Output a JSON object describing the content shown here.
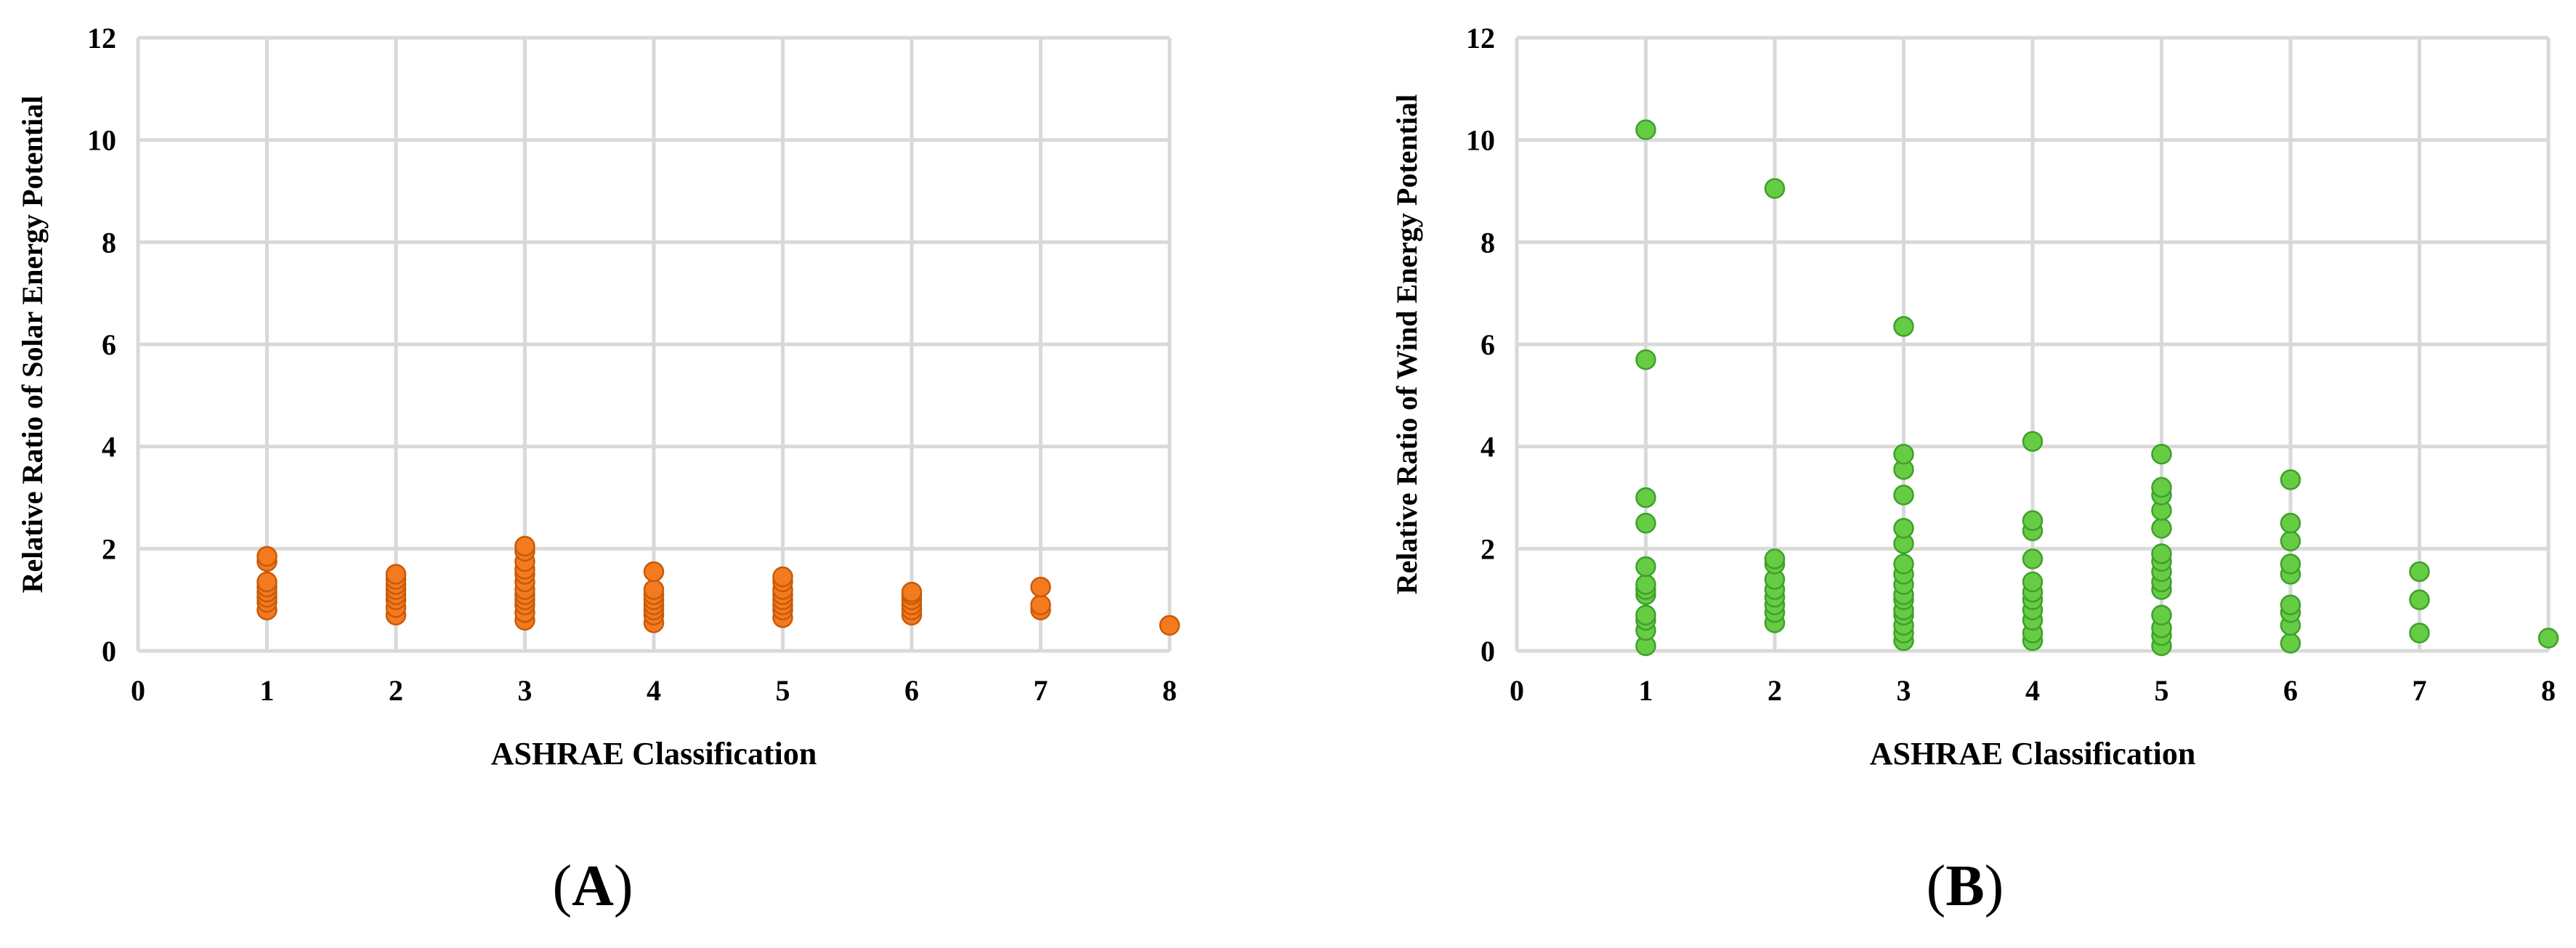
{
  "panels": [
    {
      "paren_open": "(",
      "letter": "A",
      "paren_close": ")"
    },
    {
      "paren_open": "(",
      "letter": "B",
      "paren_close": ")"
    }
  ],
  "colors": {
    "solar_fill": "#F47A20",
    "solar_stroke": "#C85A08",
    "wind_fill": "#66CC44",
    "wind_stroke": "#3FA02A",
    "grid": "#D9D9D9"
  },
  "chart_data": [
    {
      "type": "scatter",
      "panel": "A",
      "xlabel": "ASHRAE Classification",
      "ylabel": "Relative Ratio of Solar Energy Potential",
      "xlim": [
        0,
        8
      ],
      "ylim": [
        0,
        12
      ],
      "xticks": [
        0,
        1,
        2,
        3,
        4,
        5,
        6,
        7,
        8
      ],
      "yticks": [
        0,
        2,
        4,
        6,
        8,
        10,
        12
      ],
      "grid": true,
      "series": [
        {
          "points": [
            [
              1,
              0.8
            ],
            [
              1,
              0.95
            ],
            [
              1,
              1.05
            ],
            [
              1,
              1.15
            ],
            [
              1,
              1.25
            ],
            [
              1,
              1.35
            ],
            [
              1,
              1.75
            ],
            [
              1,
              1.85
            ],
            [
              2,
              0.7
            ],
            [
              2,
              0.85
            ],
            [
              2,
              1.0
            ],
            [
              2,
              1.1
            ],
            [
              2,
              1.2
            ],
            [
              2,
              1.3
            ],
            [
              2,
              1.4
            ],
            [
              2,
              1.5
            ],
            [
              3,
              0.6
            ],
            [
              3,
              0.75
            ],
            [
              3,
              0.9
            ],
            [
              3,
              1.0
            ],
            [
              3,
              1.1
            ],
            [
              3,
              1.2
            ],
            [
              3,
              1.35
            ],
            [
              3,
              1.5
            ],
            [
              3,
              1.6
            ],
            [
              3,
              1.75
            ],
            [
              3,
              1.95
            ],
            [
              3,
              2.05
            ],
            [
              4,
              0.55
            ],
            [
              4,
              0.7
            ],
            [
              4,
              0.8
            ],
            [
              4,
              0.9
            ],
            [
              4,
              1.0
            ],
            [
              4,
              1.1
            ],
            [
              4,
              1.2
            ],
            [
              4,
              1.55
            ],
            [
              5,
              0.65
            ],
            [
              5,
              0.8
            ],
            [
              5,
              0.9
            ],
            [
              5,
              1.0
            ],
            [
              5,
              1.1
            ],
            [
              5,
              1.2
            ],
            [
              5,
              1.35
            ],
            [
              5,
              1.45
            ],
            [
              6,
              0.7
            ],
            [
              6,
              0.8
            ],
            [
              6,
              0.9
            ],
            [
              6,
              1.0
            ],
            [
              6,
              1.1
            ],
            [
              6,
              1.15
            ],
            [
              7,
              0.8
            ],
            [
              7,
              0.9
            ],
            [
              7,
              1.25
            ],
            [
              8,
              0.5
            ]
          ]
        }
      ]
    },
    {
      "type": "scatter",
      "panel": "B",
      "xlabel": "ASHRAE Classification",
      "ylabel": "Relative Ratio of Wind Energy Potential",
      "xlim": [
        0,
        8
      ],
      "ylim": [
        0,
        12
      ],
      "xticks": [
        0,
        1,
        2,
        3,
        4,
        5,
        6,
        7,
        8
      ],
      "yticks": [
        0,
        2,
        4,
        6,
        8,
        10,
        12
      ],
      "grid": true,
      "series": [
        {
          "points": [
            [
              1,
              0.1
            ],
            [
              1,
              0.4
            ],
            [
              1,
              0.6
            ],
            [
              1,
              0.7
            ],
            [
              1,
              1.1
            ],
            [
              1,
              1.2
            ],
            [
              1,
              1.3
            ],
            [
              1,
              1.65
            ],
            [
              1,
              2.5
            ],
            [
              1,
              3.0
            ],
            [
              1,
              5.7
            ],
            [
              1,
              10.2
            ],
            [
              2,
              0.55
            ],
            [
              2,
              0.75
            ],
            [
              2,
              0.9
            ],
            [
              2,
              1.05
            ],
            [
              2,
              1.2
            ],
            [
              2,
              1.4
            ],
            [
              2,
              1.7
            ],
            [
              2,
              1.8
            ],
            [
              2,
              9.05
            ],
            [
              3,
              0.2
            ],
            [
              3,
              0.35
            ],
            [
              3,
              0.5
            ],
            [
              3,
              0.7
            ],
            [
              3,
              0.8
            ],
            [
              3,
              1.0
            ],
            [
              3,
              1.1
            ],
            [
              3,
              1.3
            ],
            [
              3,
              1.5
            ],
            [
              3,
              1.7
            ],
            [
              3,
              2.1
            ],
            [
              3,
              2.4
            ],
            [
              3,
              3.05
            ],
            [
              3,
              3.55
            ],
            [
              3,
              3.85
            ],
            [
              3,
              6.35
            ],
            [
              4,
              0.2
            ],
            [
              4,
              0.35
            ],
            [
              4,
              0.6
            ],
            [
              4,
              0.8
            ],
            [
              4,
              1.0
            ],
            [
              4,
              1.15
            ],
            [
              4,
              1.35
            ],
            [
              4,
              1.8
            ],
            [
              4,
              2.35
            ],
            [
              4,
              2.55
            ],
            [
              4,
              4.1
            ],
            [
              5,
              0.1
            ],
            [
              5,
              0.3
            ],
            [
              5,
              0.45
            ],
            [
              5,
              0.7
            ],
            [
              5,
              1.2
            ],
            [
              5,
              1.35
            ],
            [
              5,
              1.55
            ],
            [
              5,
              1.75
            ],
            [
              5,
              1.9
            ],
            [
              5,
              2.4
            ],
            [
              5,
              2.75
            ],
            [
              5,
              3.05
            ],
            [
              5,
              3.2
            ],
            [
              5,
              3.85
            ],
            [
              6,
              0.15
            ],
            [
              6,
              0.5
            ],
            [
              6,
              0.75
            ],
            [
              6,
              0.9
            ],
            [
              6,
              1.5
            ],
            [
              6,
              1.7
            ],
            [
              6,
              2.15
            ],
            [
              6,
              2.5
            ],
            [
              6,
              3.35
            ],
            [
              7,
              0.35
            ],
            [
              7,
              1.0
            ],
            [
              7,
              1.55
            ],
            [
              8,
              0.25
            ]
          ]
        }
      ]
    }
  ]
}
